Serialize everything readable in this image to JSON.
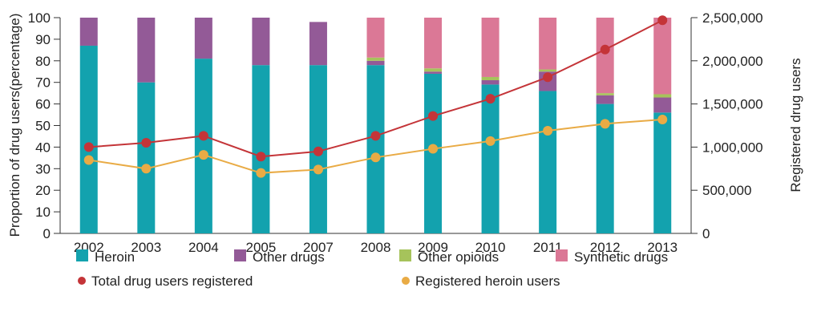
{
  "chart_data": {
    "type": "bar",
    "stacked": true,
    "categories": [
      "2002",
      "2003",
      "2004",
      "2005",
      "2007",
      "2008",
      "2009",
      "2010",
      "2011",
      "2012",
      "2013"
    ],
    "ylabel": "Proportion of drug users(percentage)",
    "y2label": "Registered drug users",
    "ylim": [
      0,
      100
    ],
    "y2lim": [
      0,
      2500000
    ],
    "yticks": [
      "0",
      "10",
      "20",
      "30",
      "40",
      "50",
      "60",
      "70",
      "80",
      "90",
      "100"
    ],
    "y2ticks": [
      "0",
      "500,000",
      "1,000,000",
      "1,500,000",
      "2,000,000",
      "2,500,000"
    ],
    "bar_series": [
      {
        "name": "Heroin",
        "color": "#13a2ae",
        "values": [
          87,
          70,
          81,
          78,
          78,
          78,
          74,
          69,
          66,
          60,
          56
        ]
      },
      {
        "name": "Other drugs",
        "color": "#935a97",
        "values": [
          13,
          30,
          19,
          22,
          20,
          2,
          1,
          2,
          9,
          4,
          7
        ]
      },
      {
        "name": "Other opioids",
        "color": "#a6c35b",
        "values": [
          0,
          0,
          0,
          0,
          0,
          1.5,
          1.5,
          1.5,
          1,
          1,
          1.5
        ]
      },
      {
        "name": "Synthetic drugs",
        "color": "#db7896",
        "values": [
          0,
          0,
          0,
          0,
          0,
          18.5,
          23.5,
          27.5,
          24,
          35,
          35.5
        ]
      }
    ],
    "line_series": [
      {
        "name": "Total drug users registered",
        "color": "#c43438",
        "values": [
          1000000,
          1050000,
          1130000,
          890000,
          950000,
          1130000,
          1360000,
          1560000,
          1810000,
          2130000,
          2470000
        ]
      },
      {
        "name": "Registered heroin users",
        "color": "#e9ab45",
        "values": [
          850000,
          750000,
          910000,
          700000,
          740000,
          880000,
          980000,
          1070000,
          1190000,
          1270000,
          1320000
        ]
      }
    ],
    "legend_position": "bottom",
    "grid": false
  }
}
